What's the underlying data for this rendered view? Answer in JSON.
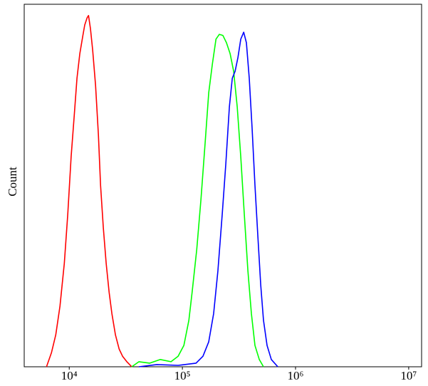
{
  "chart_data": {
    "type": "line",
    "ylabel": "Count",
    "xscale": "log",
    "xlim": [
      4000,
      13000000
    ],
    "ylim": [
      0,
      100
    ],
    "xticks": [
      {
        "value": 10000,
        "label": "10⁴"
      },
      {
        "value": 100000,
        "label": "10⁵"
      },
      {
        "value": 1000000,
        "label": "10⁶"
      },
      {
        "value": 10000000,
        "label": "10⁷"
      }
    ],
    "series": [
      {
        "color": "#ff0000",
        "x": [
          6300,
          6970,
          7600,
          8280,
          9040,
          9710,
          10400,
          11100,
          11700,
          12400,
          13200,
          13700,
          14400,
          14800,
          15400,
          16100,
          17100,
          18100,
          18900,
          20000,
          21200,
          22500,
          23800,
          25600,
          27600,
          29600,
          32300,
          35700
        ],
        "values": [
          0,
          3.9,
          8.8,
          16.7,
          28.5,
          42.2,
          58.0,
          69.7,
          79.6,
          86.4,
          91.4,
          94.3,
          96.3,
          96.9,
          93.3,
          87.4,
          77.6,
          63.9,
          50.1,
          38.3,
          28.5,
          20.6,
          14.7,
          8.8,
          4.9,
          2.9,
          1.4,
          0
        ]
      },
      {
        "color": "#00ff00",
        "x": [
          35700,
          41300,
          51400,
          63800,
          79300,
          91600,
          103000,
          114000,
          122000,
          134000,
          146000,
          159000,
          171000,
          184000,
          198000,
          212000,
          228000,
          245000,
          264000,
          284000,
          305000,
          328000,
          352000,
          379000,
          407000,
          438000,
          478000,
          521000
        ],
        "values": [
          0,
          1.4,
          1.0,
          2.0,
          1.4,
          2.9,
          5.9,
          12.8,
          20.6,
          32.4,
          46.2,
          61.9,
          75.6,
          83.5,
          90.4,
          91.7,
          91.4,
          89.4,
          86.4,
          81.5,
          71.7,
          57.9,
          42.2,
          26.5,
          14.7,
          5.9,
          2.0,
          0
        ]
      },
      {
        "color": "#0000ff",
        "x": [
          41300,
          59400,
          91600,
          132000,
          152000,
          171000,
          189000,
          206000,
          225000,
          242000,
          260000,
          276000,
          292000,
          310000,
          328000,
          348000,
          368000,
          390000,
          413000,
          438000,
          464000,
          492000,
          521000,
          560000,
          611000,
          697000
        ],
        "values": [
          0,
          0.6,
          0.4,
          1.0,
          2.9,
          6.9,
          14.7,
          26.5,
          42.2,
          56.0,
          71.7,
          79.6,
          81.5,
          85.4,
          90.4,
          92.3,
          89.4,
          79.6,
          65.8,
          50.1,
          36.3,
          22.6,
          12.8,
          5.9,
          2.0,
          0
        ]
      }
    ]
  }
}
